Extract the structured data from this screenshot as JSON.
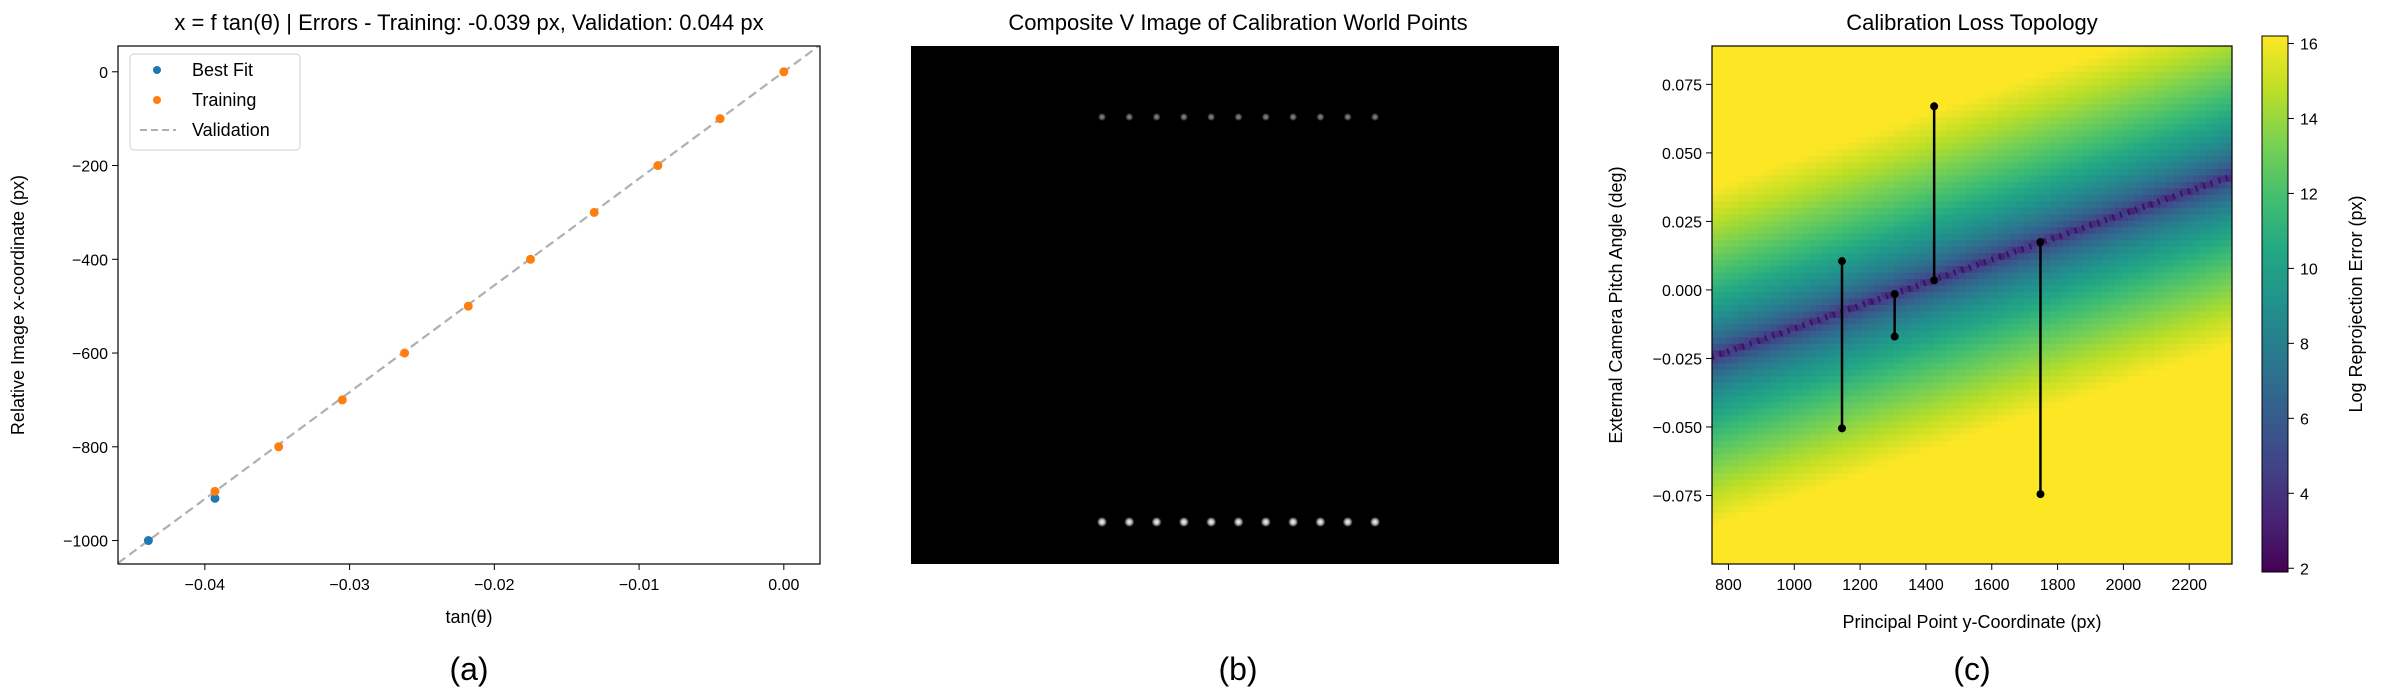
{
  "panels": [
    {
      "caption": "(a)"
    },
    {
      "caption": "(b)"
    },
    {
      "caption": "(c)"
    }
  ],
  "colors": {
    "best_fit": "#1f77b4",
    "training": "#ff7f0e",
    "validation": "#b0b0b0",
    "dot_segments": "#000000",
    "trough": "#3b0f70"
  },
  "chart_data": [
    {
      "type": "scatter",
      "title": "x = f tan(θ) | Errors - Training: -0.039 px, Validation: 0.044 px",
      "xlabel": "tan(θ)",
      "ylabel": "Relative Image x-coordinate (px)",
      "xlim": [
        -0.046,
        0.0025
      ],
      "ylim": [
        -1050,
        55
      ],
      "xticks": [
        -0.04,
        -0.03,
        -0.02,
        -0.01,
        0.0
      ],
      "xtick_labels": [
        "−0.04",
        "−0.03",
        "−0.02",
        "−0.01",
        "0.00"
      ],
      "yticks": [
        -1000,
        -800,
        -600,
        -400,
        -200,
        0
      ],
      "ytick_labels": [
        "−1000",
        "−800",
        "−600",
        "−400",
        "−200",
        "0"
      ],
      "legend_position": "top-left",
      "series": [
        {
          "name": "Best Fit",
          "kind": "points",
          "x": [
            -0.0439,
            -0.0393
          ],
          "y": [
            -1000,
            -910
          ]
        },
        {
          "name": "Training",
          "kind": "points",
          "x": [
            -0.0393,
            -0.0349,
            -0.0305,
            -0.0262,
            -0.0218,
            -0.0175,
            -0.0131,
            -0.0087,
            -0.0044,
            0.0
          ],
          "y": [
            -895,
            -800,
            -700,
            -600,
            -500,
            -400,
            -300,
            -200,
            -100,
            0
          ]
        },
        {
          "name": "Validation",
          "kind": "dashed-line",
          "x": [
            -0.046,
            0.0025
          ],
          "y": [
            -1048,
            57
          ]
        }
      ]
    },
    {
      "type": "image",
      "title": "Composite V Image of Calibration World Points",
      "rows": [
        {
          "name": "top-row",
          "count": 11,
          "brightness": 0.55
        },
        {
          "name": "bottom-row",
          "count": 11,
          "brightness": 1.0
        }
      ]
    },
    {
      "type": "heatmap",
      "title": "Calibration Loss Topology",
      "xlabel": "Principal Point y-Coordinate (px)",
      "ylabel": "External Camera Pitch Angle (deg)",
      "colorbar_label": "Log Reprojection Error (px)",
      "colormap": "viridis",
      "xlim": [
        750,
        2330
      ],
      "ylim": [
        -0.1,
        0.089
      ],
      "xticks": [
        800,
        1000,
        1200,
        1400,
        1600,
        1800,
        2000,
        2200
      ],
      "xtick_labels": [
        "800",
        "1000",
        "1200",
        "1400",
        "1600",
        "1800",
        "2000",
        "2200"
      ],
      "yticks": [
        -0.075,
        -0.05,
        -0.025,
        0.0,
        0.025,
        0.05,
        0.075
      ],
      "ytick_labels": [
        "−0.075",
        "−0.050",
        "−0.025",
        "0.000",
        "0.025",
        "0.050",
        "0.075"
      ],
      "clim": [
        1.9,
        16.2
      ],
      "cbar_ticks": [
        2,
        4,
        6,
        8,
        10,
        12,
        14,
        16
      ],
      "cbar_tick_labels": [
        "2",
        "4",
        "6",
        "8",
        "10",
        "12",
        "14",
        "16"
      ],
      "minimum_line": {
        "x": [
          750,
          2330
        ],
        "y": [
          -0.0245,
          0.0415
        ]
      },
      "segments": [
        {
          "x": 1145,
          "y_top": 0.0105,
          "y_bottom": -0.0505
        },
        {
          "x": 1305,
          "y_top": -0.0015,
          "y_bottom": -0.017
        },
        {
          "x": 1425,
          "y_top": 0.067,
          "y_bottom": 0.0035
        },
        {
          "x": 1748,
          "y_top": 0.0175,
          "y_bottom": -0.0745
        }
      ]
    }
  ]
}
